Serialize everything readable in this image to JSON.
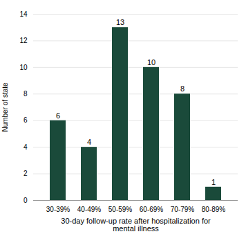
{
  "chart_data": {
    "type": "bar",
    "categories": [
      "30-39%",
      "40-49%",
      "50-59%",
      "60-69%",
      "70-79%",
      "80-89%"
    ],
    "values": [
      6,
      4,
      13,
      10,
      8,
      1
    ],
    "color": "#1a4a3a",
    "xlabel": "30-day follow-up rate after hospitalization for\nmental illness",
    "ylabel": "Number of state",
    "ylim": [
      0,
      14
    ],
    "yticks": [
      0,
      2,
      4,
      6,
      8,
      10,
      12,
      14
    ],
    "grid": true,
    "data_labels": true
  }
}
